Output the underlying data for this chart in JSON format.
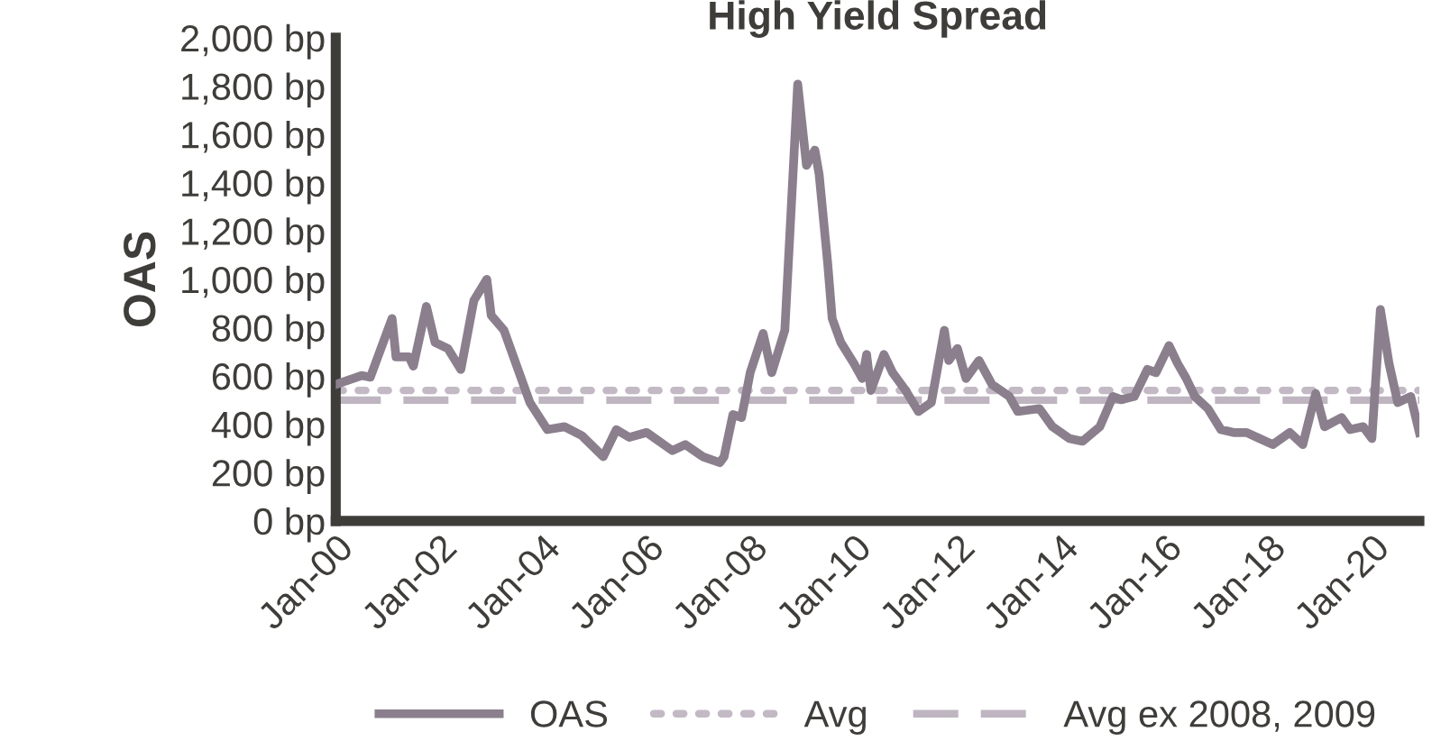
{
  "chart_data": {
    "type": "line",
    "title": "High Yield Spread",
    "ylabel": "OAS",
    "series": [
      {
        "name": "OAS",
        "color": "#8b7f8e",
        "line_style": "solid",
        "x": [
          "2000-01",
          "2000-07",
          "2000-09",
          "2001-02",
          "2001-03",
          "2001-06",
          "2001-07",
          "2001-10",
          "2001-12",
          "2002-03",
          "2002-06",
          "2002-09",
          "2002-12",
          "2003-01",
          "2003-04",
          "2003-07",
          "2003-10",
          "2004-02",
          "2004-06",
          "2004-10",
          "2005-03",
          "2005-06",
          "2005-09",
          "2006-01",
          "2006-07",
          "2006-10",
          "2007-02",
          "2007-06",
          "2007-07",
          "2007-09",
          "2007-11",
          "2008-01",
          "2008-04",
          "2008-06",
          "2008-09",
          "2008-12",
          "2009-02",
          "2009-04",
          "2009-05",
          "2009-07",
          "2009-08",
          "2009-10",
          "2010-01",
          "2010-03",
          "2010-04",
          "2010-05",
          "2010-08",
          "2010-10",
          "2011-01",
          "2011-04",
          "2011-07",
          "2011-10",
          "2011-11",
          "2012-01",
          "2012-03",
          "2012-06",
          "2012-09",
          "2013-01",
          "2013-03",
          "2013-08",
          "2013-11",
          "2014-03",
          "2014-06",
          "2014-10",
          "2015-01",
          "2015-03",
          "2015-06",
          "2015-09",
          "2015-11",
          "2016-02",
          "2016-04",
          "2016-06",
          "2016-08",
          "2016-11",
          "2017-02",
          "2017-05",
          "2017-08",
          "2017-11",
          "2018-02",
          "2018-06",
          "2018-09",
          "2018-12",
          "2019-02",
          "2019-06",
          "2019-08",
          "2019-11",
          "2020-01",
          "2020-03",
          "2020-05",
          "2020-07",
          "2020-10",
          "2020-12"
        ],
        "values": [
          565,
          602,
          595,
          838,
          679,
          679,
          641,
          888,
          739,
          714,
          627,
          913,
          1000,
          851,
          789,
          640,
          490,
          378,
          390,
          353,
          266,
          378,
          346,
          366,
          291,
          316,
          266,
          241,
          266,
          440,
          428,
          614,
          776,
          614,
          789,
          1808,
          1472,
          1535,
          1435,
          1062,
          838,
          739,
          652,
          590,
          689,
          540,
          689,
          614,
          540,
          453,
          490,
          789,
          664,
          714,
          590,
          664,
          565,
          515,
          453,
          465,
          390,
          341,
          330,
          390,
          515,
          502,
          515,
          627,
          614,
          726,
          652,
          590,
          515,
          465,
          378,
          366,
          366,
          341,
          316,
          366,
          316,
          528,
          390,
          428,
          378,
          390,
          341,
          875,
          652,
          490,
          515,
          366
        ]
      },
      {
        "name": "Avg",
        "color": "#c3b9c5",
        "line_style": "dotted",
        "x": [
          "2000-01",
          "2020-12"
        ],
        "values": [
          540,
          540
        ]
      },
      {
        "name": "Avg ex 2008, 2009",
        "color": "#bfb5c1",
        "line_style": "dashed",
        "x": [
          "2000-01",
          "2020-12"
        ],
        "values": [
          500,
          500
        ]
      }
    ],
    "xlim": [
      "2000-01",
      "2020-12"
    ],
    "xticks": [
      {
        "value": "2000-01",
        "label": "Jan-00"
      },
      {
        "value": "2002-01",
        "label": "Jan-02"
      },
      {
        "value": "2004-01",
        "label": "Jan-04"
      },
      {
        "value": "2006-01",
        "label": "Jan-06"
      },
      {
        "value": "2008-01",
        "label": "Jan-08"
      },
      {
        "value": "2010-01",
        "label": "Jan-10"
      },
      {
        "value": "2012-01",
        "label": "Jan-12"
      },
      {
        "value": "2014-01",
        "label": "Jan-14"
      },
      {
        "value": "2016-01",
        "label": "Jan-16"
      },
      {
        "value": "2018-01",
        "label": "Jan-18"
      },
      {
        "value": "2020-01",
        "label": "Jan-20"
      }
    ],
    "ylim": [
      0,
      2000
    ],
    "yticks": [
      {
        "value": 0,
        "label": "0 bp"
      },
      {
        "value": 200,
        "label": "200 bp"
      },
      {
        "value": 400,
        "label": "400 bp"
      },
      {
        "value": 600,
        "label": "600 bp"
      },
      {
        "value": 800,
        "label": "800 bp"
      },
      {
        "value": 1000,
        "label": "1,000 bp"
      },
      {
        "value": 1200,
        "label": "1,200 bp"
      },
      {
        "value": 1400,
        "label": "1,400 bp"
      },
      {
        "value": 1600,
        "label": "1,600 bp"
      },
      {
        "value": 1800,
        "label": "1,800 bp"
      },
      {
        "value": 2000,
        "label": "2,000 bp"
      }
    ],
    "grid": false,
    "legend": "bottom"
  }
}
